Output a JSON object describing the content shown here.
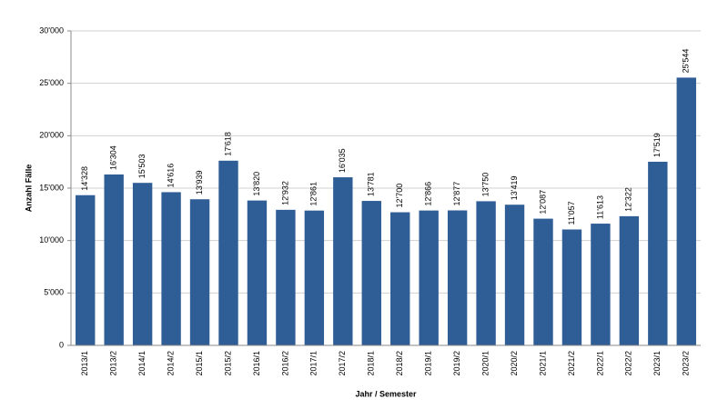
{
  "chart_data": {
    "type": "bar",
    "x_label": "Jahr / Semester",
    "y_label": "Anzahl Fälle",
    "categories": [
      "2013/1",
      "2013/2",
      "2014/1",
      "2014/2",
      "2015/1",
      "2015/2",
      "2016/1",
      "2016/2",
      "2017/1",
      "2017/2",
      "2018/1",
      "2018/2",
      "2019/1",
      "2019/2",
      "2020/1",
      "2020/2",
      "2021/1",
      "2021/2",
      "2022/1",
      "2022/2",
      "2023/1",
      "2023/2"
    ],
    "values": [
      14328,
      16304,
      15503,
      14616,
      13939,
      17618,
      13820,
      12932,
      12861,
      16035,
      13781,
      12700,
      12866,
      12877,
      13750,
      13419,
      12087,
      11057,
      11613,
      12322,
      17519,
      25544
    ],
    "value_labels": [
      "14'328",
      "16'304",
      "15'503",
      "14'616",
      "13'939",
      "17'618",
      "13'820",
      "12'932",
      "12'861",
      "16'035",
      "13'781",
      "12'700",
      "12'866",
      "12'877",
      "13'750",
      "13'419",
      "12'087",
      "11'057",
      "11'613",
      "12'322",
      "17'519",
      "25'544"
    ],
    "color": "#2f5d96",
    "ylim": [
      0,
      30000
    ],
    "yticks": [
      0,
      {
        "value": 5000,
        "label": "5'000"
      },
      {
        "value": 10000,
        "label": "10'000"
      },
      {
        "value": 15000,
        "label": "15'000"
      },
      {
        "value": 20000,
        "label": "20'000"
      },
      {
        "value": 25000,
        "label": "25'000"
      },
      {
        "value": 30000,
        "label": "30'000"
      }
    ],
    "grid": true
  }
}
